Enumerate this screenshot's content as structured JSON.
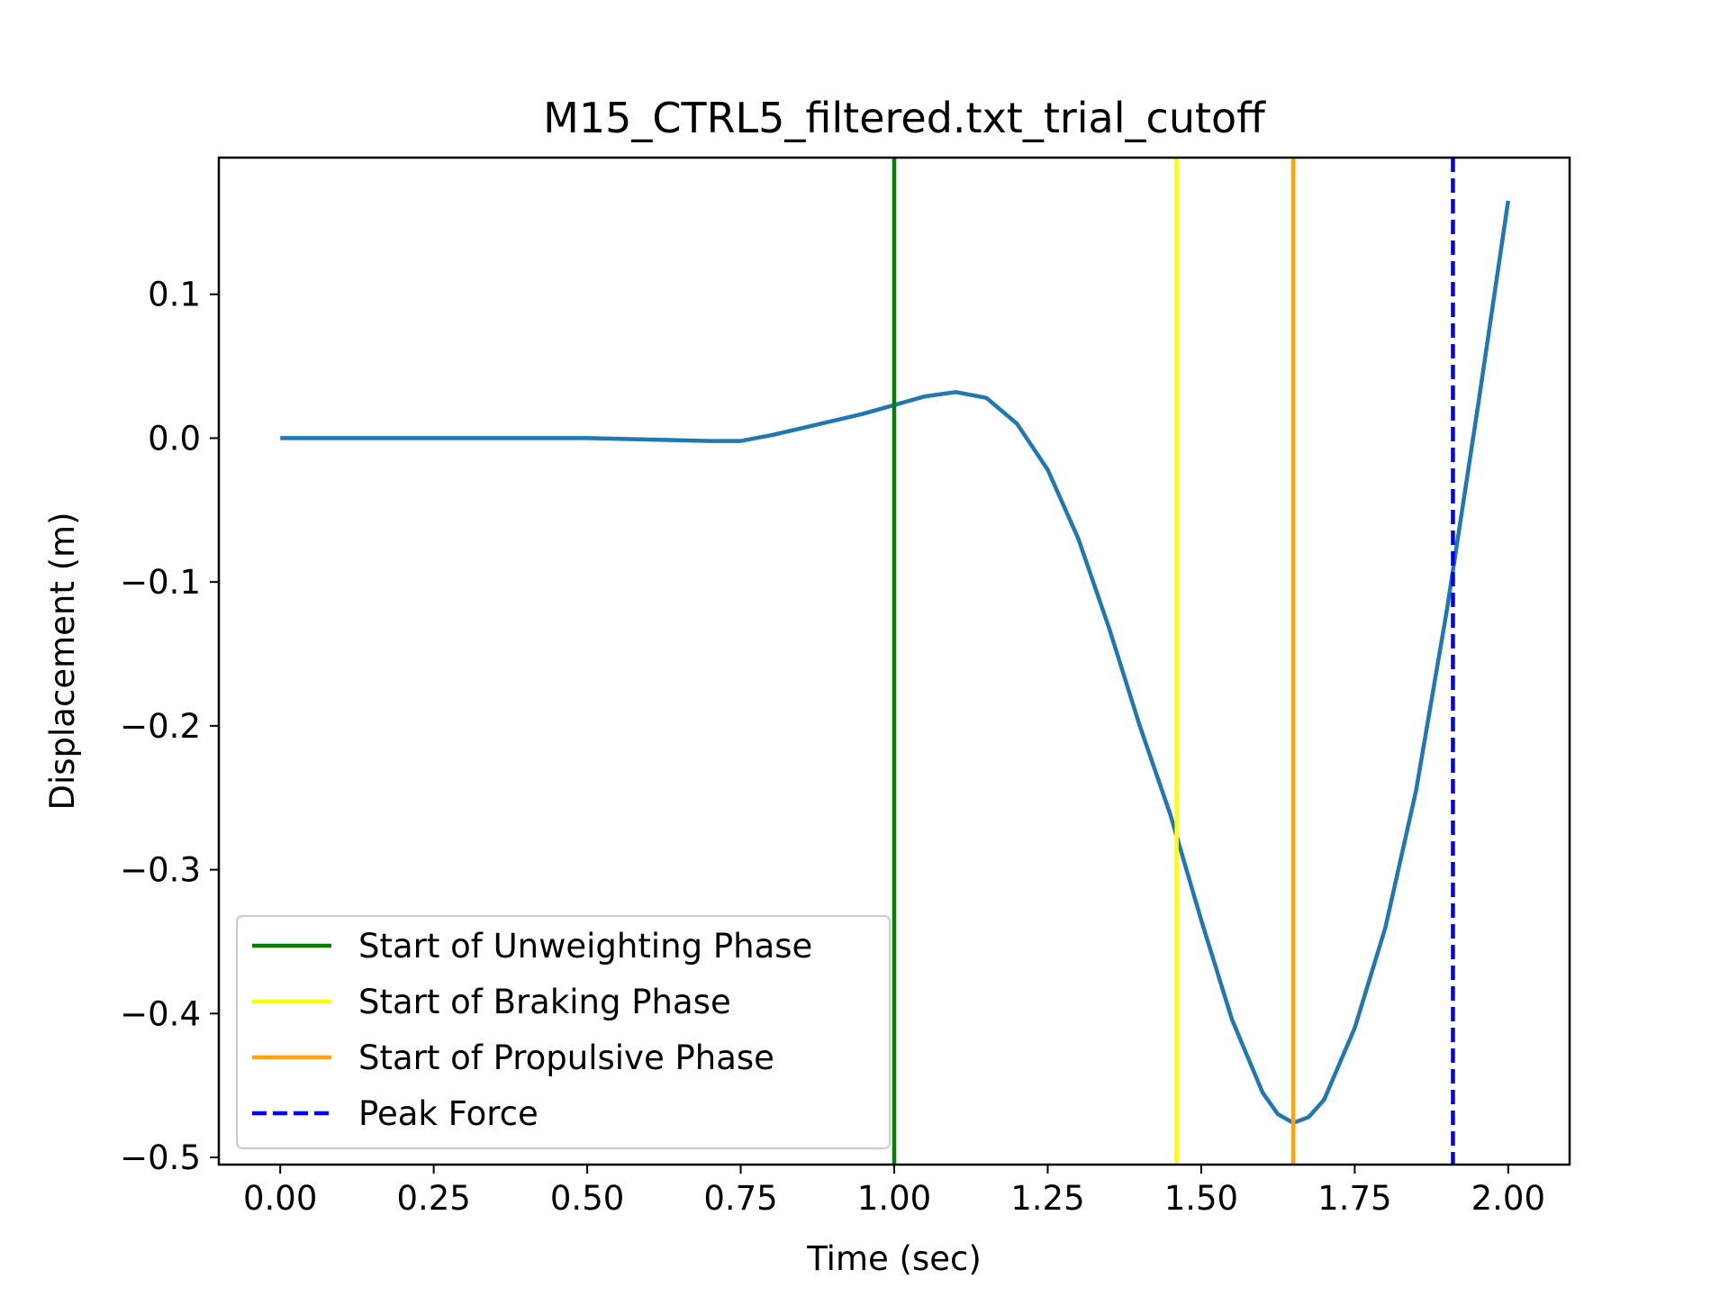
{
  "chart_data": {
    "type": "line",
    "title": "M15_CTRL5_filtered.txt_trial_cutoff",
    "xlabel": "Time (sec)",
    "ylabel": "Displacement (m)",
    "xlim": [
      -0.1,
      2.1
    ],
    "ylim": [
      -0.505,
      0.195
    ],
    "x_ticks": [
      0.0,
      0.25,
      0.5,
      0.75,
      1.0,
      1.25,
      1.5,
      1.75,
      2.0
    ],
    "x_tick_labels": [
      "0.00",
      "0.25",
      "0.50",
      "0.75",
      "1.00",
      "1.25",
      "1.50",
      "1.75",
      "2.00"
    ],
    "y_ticks": [
      0.1,
      0.0,
      -0.1,
      -0.2,
      -0.3,
      -0.4,
      -0.5
    ],
    "y_tick_labels": [
      "0.1",
      "0.0",
      "−0.1",
      "−0.2",
      "−0.3",
      "−0.4",
      "−0.5"
    ],
    "grid": false,
    "legend_position": "lower-left",
    "series": [
      {
        "color": "#1f77b4",
        "x": [
          0.0,
          0.1,
          0.2,
          0.3,
          0.4,
          0.5,
          0.6,
          0.7,
          0.75,
          0.8,
          0.85,
          0.9,
          0.95,
          1.0,
          1.05,
          1.1,
          1.15,
          1.2,
          1.25,
          1.3,
          1.35,
          1.4,
          1.45,
          1.5,
          1.55,
          1.6,
          1.625,
          1.65,
          1.675,
          1.7,
          1.75,
          1.8,
          1.85,
          1.9,
          1.95,
          2.0
        ],
        "y": [
          0.0,
          0.0,
          0.0,
          0.0,
          0.0,
          0.0,
          -0.001,
          -0.002,
          -0.002,
          0.002,
          0.007,
          0.012,
          0.017,
          0.023,
          0.029,
          0.032,
          0.028,
          0.01,
          -0.022,
          -0.07,
          -0.132,
          -0.2,
          -0.262,
          -0.335,
          -0.404,
          -0.455,
          -0.47,
          -0.476,
          -0.472,
          -0.46,
          -0.41,
          -0.34,
          -0.245,
          -0.12,
          0.02,
          0.165
        ]
      }
    ],
    "vertical_lines": [
      {
        "name": "Start of Unweighting Phase",
        "x": 1.0,
        "color": "#008000",
        "style": "solid"
      },
      {
        "name": "Start of Braking Phase",
        "x": 1.46,
        "color": "#ffff00",
        "style": "solid"
      },
      {
        "name": "Start of Propulsive Phase",
        "x": 1.65,
        "color": "#ffa500",
        "style": "solid"
      },
      {
        "name": "Peak Force",
        "x": 1.91,
        "color": "#0000ff",
        "style": "dashed"
      }
    ]
  }
}
